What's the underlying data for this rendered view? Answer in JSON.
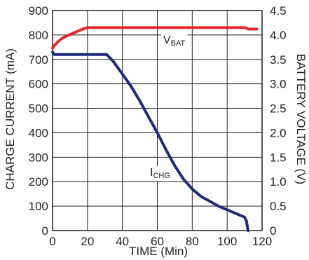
{
  "chart_data": {
    "type": "line",
    "xlabel": "TIME (Min)",
    "ylabel": "CHARGE CURRENT (mA)",
    "y2label": "BATTERY VOLTAGE (V)",
    "xlim": [
      0,
      120
    ],
    "ylim": [
      0,
      900
    ],
    "y2lim": [
      0,
      4.5
    ],
    "grid": true,
    "x_ticks": [
      "0",
      "20",
      "40",
      "60",
      "80",
      "100",
      "120"
    ],
    "y_ticks": [
      "0",
      "100",
      "200",
      "300",
      "400",
      "500",
      "600",
      "700",
      "800",
      "900"
    ],
    "y2_ticks": [
      "0",
      "0.5",
      "1.0",
      "1.5",
      "2.0",
      "2.5",
      "3.0",
      "3.5",
      "4.0",
      "4.5"
    ],
    "series": [
      {
        "name": "V",
        "subscript": "BAT",
        "axis": "right",
        "color": "#e8262b",
        "points": [
          [
            0,
            3.73
          ],
          [
            1,
            3.78
          ],
          [
            3,
            3.86
          ],
          [
            5,
            3.92
          ],
          [
            8,
            3.98
          ],
          [
            12,
            4.04
          ],
          [
            16,
            4.1
          ],
          [
            18,
            4.13
          ],
          [
            20,
            4.15
          ],
          [
            40,
            4.15
          ],
          [
            60,
            4.15
          ],
          [
            80,
            4.15
          ],
          [
            100,
            4.15
          ],
          [
            110,
            4.15
          ],
          [
            111,
            4.14
          ],
          [
            112,
            4.12
          ],
          [
            117,
            4.12
          ]
        ]
      },
      {
        "name": "I",
        "subscript": "CHG",
        "axis": "left",
        "color": "#1f2a78",
        "points": [
          [
            0,
            730
          ],
          [
            1,
            720
          ],
          [
            10,
            720
          ],
          [
            20,
            720
          ],
          [
            31,
            720
          ],
          [
            35,
            690
          ],
          [
            40,
            640
          ],
          [
            45,
            590
          ],
          [
            50,
            530
          ],
          [
            55,
            465
          ],
          [
            60,
            400
          ],
          [
            65,
            330
          ],
          [
            70,
            265
          ],
          [
            75,
            210
          ],
          [
            80,
            170
          ],
          [
            85,
            140
          ],
          [
            90,
            120
          ],
          [
            95,
            100
          ],
          [
            100,
            85
          ],
          [
            105,
            70
          ],
          [
            110,
            55
          ],
          [
            111,
            40
          ],
          [
            111.5,
            20
          ],
          [
            112,
            0
          ]
        ]
      }
    ]
  }
}
